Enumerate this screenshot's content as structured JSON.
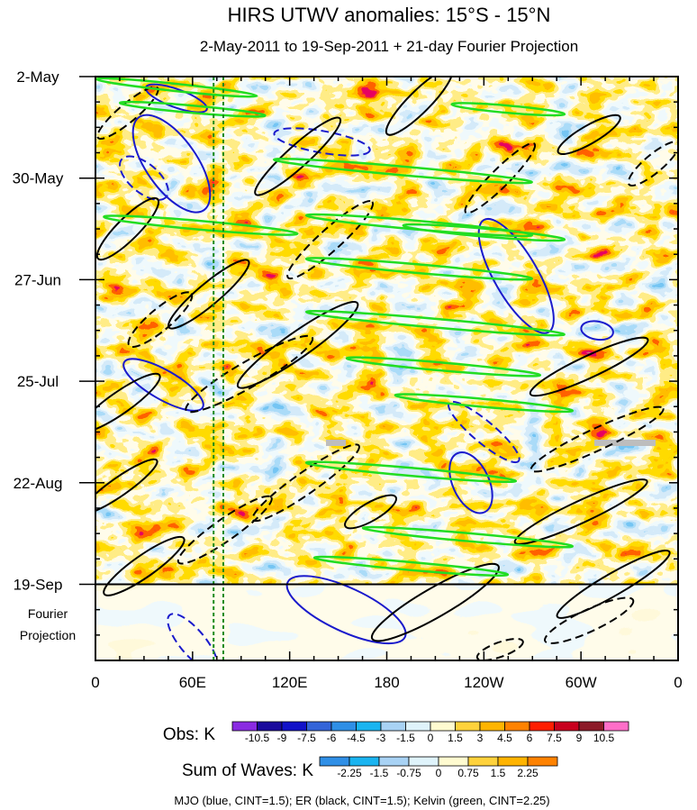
{
  "chart_data": {
    "type": "heatmap",
    "title": "HIRS UTWV anomalies: 15°S - 15°N",
    "subtitle": "2-May-2011 to 19-Sep-2011 + 21-day Fourier Projection",
    "x_axis": {
      "range_deg_east": [
        0,
        360
      ],
      "ticks": [
        {
          "deg": 0,
          "label": "0"
        },
        {
          "deg": 60,
          "label": "60E"
        },
        {
          "deg": 120,
          "label": "120E"
        },
        {
          "deg": 180,
          "label": "180"
        },
        {
          "deg": 240,
          "label": "120W"
        },
        {
          "deg": 300,
          "label": "60W"
        },
        {
          "deg": 360,
          "label": "0"
        }
      ],
      "minor_step_deg": 15
    },
    "y_axis": {
      "range_days": [
        0,
        161
      ],
      "ticks": [
        {
          "day": 0,
          "label": "2-May"
        },
        {
          "day": 28,
          "label": "30-May"
        },
        {
          "day": 56,
          "label": "27-Jun"
        },
        {
          "day": 84,
          "label": "25-Jul"
        },
        {
          "day": 112,
          "label": "22-Aug"
        },
        {
          "day": 140,
          "label": "19-Sep"
        }
      ],
      "projection_start_day": 140,
      "projection_label": [
        "Fourier",
        "Projection"
      ]
    },
    "reference_lines_deg": [
      73,
      79
    ],
    "obs_colorbar": {
      "label": "Obs: K",
      "levels": [
        "-10.5",
        "-9",
        "-7.5",
        "-6",
        "-4.5",
        "-3",
        "-1.5",
        "0",
        "1.5",
        "3",
        "4.5",
        "6",
        "7.5",
        "9",
        "10.5"
      ],
      "colors": [
        "#8a2be2",
        "#1a0a9c",
        "#1212c8",
        "#3464d8",
        "#2f8fe6",
        "#1ab4f0",
        "#a8d2f4",
        "#dff3fb",
        "#fffbd0",
        "#ffd23c",
        "#ffb400",
        "#ff8200",
        "#ff1e00",
        "#c8001e",
        "#8c1a28",
        "#ff6ec8"
      ]
    },
    "waves_colorbar": {
      "label": "Sum of Waves: K",
      "levels": [
        "-2.25",
        "-1.5",
        "-0.75",
        "0",
        "0.75",
        "1.5",
        "2.25"
      ],
      "colors": [
        "#2f8fe6",
        "#1ab4f0",
        "#a8d2f4",
        "#dff3fb",
        "#fffbd0",
        "#ffd23c",
        "#ffb400",
        "#ff8200"
      ]
    },
    "legend_text": "MJO (blue, CINT=1.5); ER (black, CINT=1.5); Kelvin (green, CINT=2.25)",
    "contour_series": [
      {
        "name": "MJO",
        "color": "#1a1acc",
        "cint": 1.5,
        "ellipses": [
          {
            "lon": 50,
            "day": 6,
            "rx": 20,
            "ry": 2.5,
            "rot": 20,
            "neg": false
          },
          {
            "lon": 47,
            "day": 24,
            "rx": 35,
            "ry": 7,
            "rot": 55,
            "neg": false
          },
          {
            "lon": 30,
            "day": 28,
            "rx": 18,
            "ry": 4,
            "rot": 40,
            "neg": true
          },
          {
            "lon": 140,
            "day": 18,
            "rx": 30,
            "ry": 3,
            "rot": 10,
            "neg": true
          },
          {
            "lon": 260,
            "day": 55,
            "rx": 40,
            "ry": 6,
            "rot": 60,
            "neg": false
          },
          {
            "lon": 310,
            "day": 70,
            "rx": 10,
            "ry": 2.5,
            "rot": 10,
            "neg": false
          },
          {
            "lon": 240,
            "day": 98,
            "rx": 28,
            "ry": 3,
            "rot": 40,
            "neg": true
          },
          {
            "lon": 42,
            "day": 85,
            "rx": 28,
            "ry": 4,
            "rot": 30,
            "neg": false
          },
          {
            "lon": 232,
            "day": 112,
            "rx": 20,
            "ry": 5,
            "rot": 65,
            "neg": false
          },
          {
            "lon": 155,
            "day": 147,
            "rx": 40,
            "ry": 6,
            "rot": 25,
            "neg": false
          },
          {
            "lon": 60,
            "day": 156,
            "rx": 22,
            "ry": 3.5,
            "rot": 50,
            "neg": true
          }
        ]
      },
      {
        "name": "ER",
        "color": "#000000",
        "cint": 1.5,
        "ellipses": [
          {
            "lon": 305,
            "day": 16,
            "rx": 22,
            "ry": 2.5,
            "rot": -30,
            "neg": false
          },
          {
            "lon": 345,
            "day": 24,
            "rx": 20,
            "ry": 2.5,
            "rot": -40,
            "neg": true
          },
          {
            "lon": 200,
            "day": 7,
            "rx": 28,
            "ry": 3,
            "rot": -45,
            "neg": false
          },
          {
            "lon": 20,
            "day": 10,
            "rx": 24,
            "ry": 2.5,
            "rot": -40,
            "neg": true
          },
          {
            "lon": 125,
            "day": 22,
            "rx": 35,
            "ry": 3,
            "rot": -42,
            "neg": false
          },
          {
            "lon": 250,
            "day": 28,
            "rx": 30,
            "ry": 2.5,
            "rot": -45,
            "neg": true
          },
          {
            "lon": 20,
            "day": 42,
            "rx": 26,
            "ry": 3,
            "rot": -45,
            "neg": false
          },
          {
            "lon": 145,
            "day": 45,
            "rx": 35,
            "ry": 3,
            "rot": -42,
            "neg": true
          },
          {
            "lon": 70,
            "day": 60,
            "rx": 32,
            "ry": 3,
            "rot": -40,
            "neg": false
          },
          {
            "lon": 40,
            "day": 67,
            "rx": 25,
            "ry": 3,
            "rot": -40,
            "neg": true
          },
          {
            "lon": 125,
            "day": 74,
            "rx": 45,
            "ry": 3.5,
            "rot": -35,
            "neg": false
          },
          {
            "lon": 95,
            "day": 82,
            "rx": 45,
            "ry": 3.5,
            "rot": -30,
            "neg": true
          },
          {
            "lon": 15,
            "day": 90,
            "rx": 30,
            "ry": 3,
            "rot": -35,
            "neg": false
          },
          {
            "lon": 305,
            "day": 80,
            "rx": 40,
            "ry": 3,
            "rot": -25,
            "neg": false
          },
          {
            "lon": 310,
            "day": 100,
            "rx": 45,
            "ry": 3,
            "rot": -25,
            "neg": true
          },
          {
            "lon": 300,
            "day": 120,
            "rx": 45,
            "ry": 3,
            "rot": -25,
            "neg": false
          },
          {
            "lon": 15,
            "day": 113,
            "rx": 28,
            "ry": 2.5,
            "rot": -35,
            "neg": false
          },
          {
            "lon": 130,
            "day": 112,
            "rx": 40,
            "ry": 3,
            "rot": -35,
            "neg": true
          },
          {
            "lon": 80,
            "day": 125,
            "rx": 35,
            "ry": 3,
            "rot": -35,
            "neg": true
          },
          {
            "lon": 170,
            "day": 120,
            "rx": 18,
            "ry": 2.5,
            "rot": -30,
            "neg": false
          },
          {
            "lon": 30,
            "day": 135,
            "rx": 30,
            "ry": 3,
            "rot": -35,
            "neg": false
          },
          {
            "lon": 210,
            "day": 145,
            "rx": 45,
            "ry": 4,
            "rot": -30,
            "neg": false
          },
          {
            "lon": 320,
            "day": 140,
            "rx": 40,
            "ry": 3,
            "rot": -30,
            "neg": false
          },
          {
            "lon": 305,
            "day": 150,
            "rx": 30,
            "ry": 3,
            "rot": -25,
            "neg": true
          },
          {
            "lon": 250,
            "day": 158,
            "rx": 15,
            "ry": 2,
            "rot": -20,
            "neg": true
          }
        ]
      },
      {
        "name": "Kelvin",
        "color": "#22dd22",
        "cint": 2.25,
        "ellipses": [
          {
            "lon": 50,
            "day": 3,
            "rx": 50,
            "ry": 1,
            "rot": 6,
            "neg": false
          },
          {
            "lon": 60,
            "day": 9,
            "rx": 45,
            "ry": 1,
            "rot": 5,
            "neg": false
          },
          {
            "lon": 255,
            "day": 9,
            "rx": 35,
            "ry": 1,
            "rot": 5,
            "neg": false
          },
          {
            "lon": 190,
            "day": 26,
            "rx": 80,
            "ry": 1.2,
            "rot": 5,
            "neg": false
          },
          {
            "lon": 65,
            "day": 41,
            "rx": 60,
            "ry": 1.2,
            "rot": 5,
            "neg": false
          },
          {
            "lon": 200,
            "day": 41,
            "rx": 70,
            "ry": 1.2,
            "rot": 5,
            "neg": false
          },
          {
            "lon": 240,
            "day": 43,
            "rx": 50,
            "ry": 1.1,
            "rot": 5,
            "neg": false
          },
          {
            "lon": 200,
            "day": 53,
            "rx": 70,
            "ry": 1.2,
            "rot": 5,
            "neg": false
          },
          {
            "lon": 210,
            "day": 68,
            "rx": 80,
            "ry": 1.2,
            "rot": 5,
            "neg": false
          },
          {
            "lon": 215,
            "day": 80,
            "rx": 60,
            "ry": 1.1,
            "rot": 5,
            "neg": false
          },
          {
            "lon": 240,
            "day": 90,
            "rx": 55,
            "ry": 1.1,
            "rot": 5,
            "neg": false
          },
          {
            "lon": 195,
            "day": 109,
            "rx": 65,
            "ry": 1.1,
            "rot": 5,
            "neg": false
          },
          {
            "lon": 230,
            "day": 127,
            "rx": 65,
            "ry": 1.1,
            "rot": 5,
            "neg": false
          },
          {
            "lon": 195,
            "day": 135,
            "rx": 60,
            "ry": 1.1,
            "rot": 5,
            "neg": false
          }
        ]
      }
    ]
  }
}
